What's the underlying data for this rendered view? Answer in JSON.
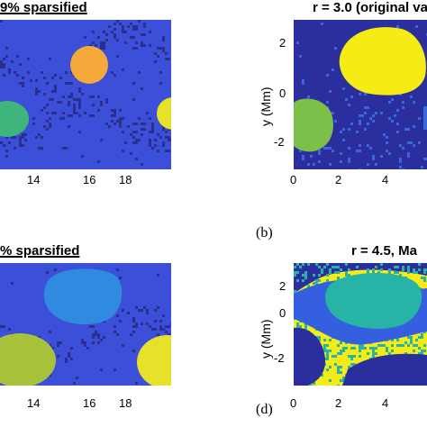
{
  "chart_data": [
    {
      "type": "heatmap",
      "title": "9% sparsified",
      "x_ticks": [
        "14",
        "16",
        "18"
      ],
      "colors": {
        "background": "#3b4fd9",
        "noise": "#2a2e8c",
        "blob_orange": "#f5a93a",
        "blob_green": "#3fb57c",
        "blob_yellow": "#e6e22a"
      }
    },
    {
      "type": "heatmap",
      "title": "r = 3.0 (original va",
      "ylabel": "y (Mm)",
      "x_ticks": [
        "0",
        "2",
        "4"
      ],
      "y_ticks": [
        "2",
        "0",
        "-2"
      ],
      "subplot_label": "(b)",
      "colors": {
        "background": "#2b2f9e",
        "blob_yellow": "#f4ec14",
        "blob_green": "#7cc04a",
        "accent_blue": "#3a66e0"
      }
    },
    {
      "type": "heatmap",
      "title": "% sparsified",
      "x_ticks": [
        "14",
        "16",
        "18"
      ],
      "colors": {
        "background": "#3b4fd9",
        "noise": "#2a2e8c",
        "blob_blue": "#2f8ae0",
        "blob_olive": "#a7c23a",
        "blob_yellow": "#e6e22a"
      }
    },
    {
      "type": "heatmap",
      "title": "r = 4.5, Ma",
      "ylabel": "y (Mm)",
      "x_ticks": [
        "0",
        "2",
        "4"
      ],
      "y_ticks": [
        "2",
        "0",
        "-2"
      ],
      "subplot_label": "(d)",
      "colors": {
        "background": "#2b2f9e",
        "band_blue": "#3460e0",
        "blob_teal": "#27b4a6",
        "yellow": "#f4ec14"
      }
    }
  ]
}
